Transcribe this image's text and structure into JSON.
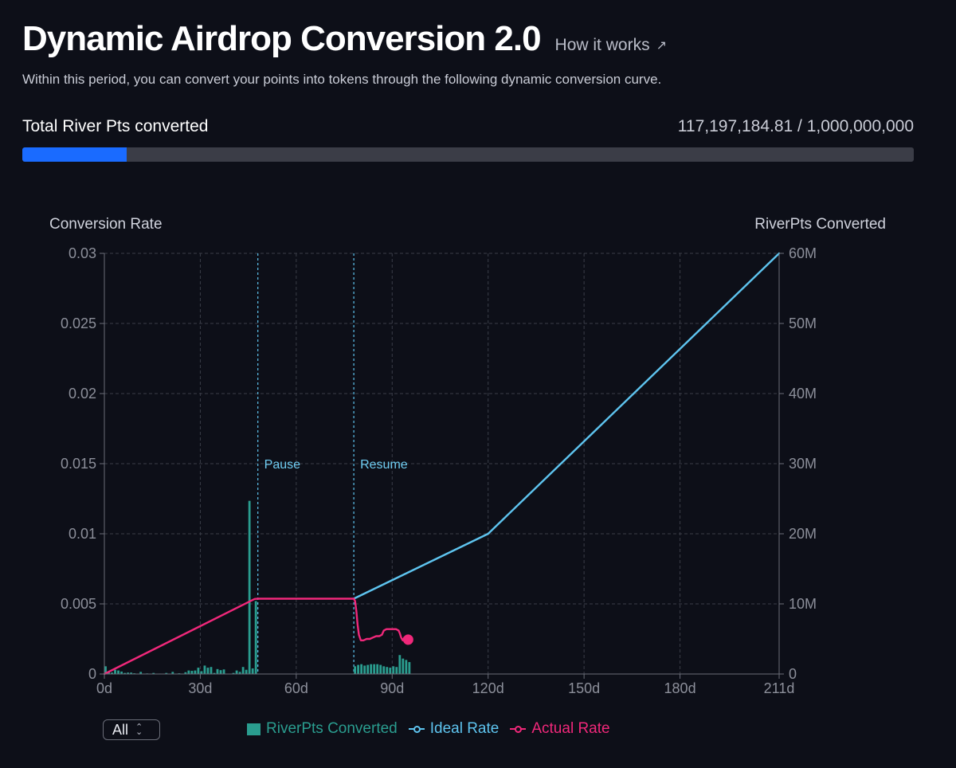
{
  "header": {
    "title": "Dynamic Airdrop Conversion 2.0",
    "how_link": "How it works",
    "subtitle": "Within this period, you can convert your points into tokens through the following dynamic conversion curve."
  },
  "progress": {
    "label": "Total River Pts converted",
    "value_text": "117,197,184.81 / 1,000,000,000",
    "converted": 117197184.81,
    "total": 1000000000,
    "color": "#1a6bff"
  },
  "controls": {
    "range_selected": "All"
  },
  "chart_data": {
    "type": "combo",
    "left_axis_title": "Conversion Rate",
    "right_axis_title": "RiverPts Converted",
    "x_ticks": [
      "0d",
      "30d",
      "60d",
      "90d",
      "120d",
      "150d",
      "180d",
      "211d"
    ],
    "x_tick_values": [
      0,
      30,
      60,
      90,
      120,
      150,
      180,
      211
    ],
    "x_range": [
      0,
      211
    ],
    "left_ticks": [
      "0",
      "0.005",
      "0.01",
      "0.015",
      "0.02",
      "0.025",
      "0.03"
    ],
    "left_tick_values": [
      0,
      0.005,
      0.01,
      0.015,
      0.02,
      0.025,
      0.03
    ],
    "left_range": [
      0,
      0.03
    ],
    "right_ticks": [
      "0",
      "10M",
      "20M",
      "30M",
      "40M",
      "50M",
      "60M"
    ],
    "right_tick_values": [
      0,
      10000000,
      20000000,
      30000000,
      40000000,
      50000000,
      60000000
    ],
    "right_range": [
      0,
      60000000
    ],
    "grid": true,
    "markers": [
      {
        "label": "Pause",
        "day": 48
      },
      {
        "label": "Resume",
        "day": 78
      }
    ],
    "series": [
      {
        "name": "RiverPts Converted",
        "type": "bar",
        "axis": "right",
        "color": "#2a9d8f",
        "points": [
          [
            0,
            1100000
          ],
          [
            1,
            400000
          ],
          [
            2,
            200000
          ],
          [
            3,
            600000
          ],
          [
            4,
            500000
          ],
          [
            5,
            350000
          ],
          [
            6,
            150000
          ],
          [
            7,
            200000
          ],
          [
            8,
            200000
          ],
          [
            9,
            100000
          ],
          [
            11,
            300000
          ],
          [
            13,
            80000
          ],
          [
            15,
            150000
          ],
          [
            17,
            60000
          ],
          [
            19,
            150000
          ],
          [
            21,
            300000
          ],
          [
            23,
            100000
          ],
          [
            25,
            250000
          ],
          [
            26,
            500000
          ],
          [
            27,
            450000
          ],
          [
            28,
            500000
          ],
          [
            29,
            900000
          ],
          [
            30,
            400000
          ],
          [
            31,
            1200000
          ],
          [
            32,
            900000
          ],
          [
            33,
            1000000
          ],
          [
            34,
            150000
          ],
          [
            35,
            700000
          ],
          [
            36,
            550000
          ],
          [
            37,
            650000
          ],
          [
            39,
            50000
          ],
          [
            40,
            150000
          ],
          [
            41,
            500000
          ],
          [
            42,
            300000
          ],
          [
            43,
            1000000
          ],
          [
            44,
            600000
          ],
          [
            45,
            24700000
          ],
          [
            46,
            800000
          ],
          [
            47,
            10400000
          ],
          [
            78,
            1100000
          ],
          [
            79,
            1300000
          ],
          [
            80,
            1400000
          ],
          [
            81,
            1200000
          ],
          [
            82,
            1300000
          ],
          [
            83,
            1400000
          ],
          [
            84,
            1400000
          ],
          [
            85,
            1400000
          ],
          [
            86,
            1300000
          ],
          [
            87,
            1100000
          ],
          [
            88,
            1000000
          ],
          [
            89,
            900000
          ],
          [
            90,
            1100000
          ],
          [
            91,
            1000000
          ],
          [
            92,
            2700000
          ],
          [
            93,
            2200000
          ],
          [
            94,
            2000000
          ],
          [
            95,
            1700000
          ]
        ]
      },
      {
        "name": "Ideal Rate",
        "type": "line",
        "axis": "left",
        "color": "#5ec4ef",
        "points": [
          [
            78,
            0.00537
          ],
          [
            120,
            0.01
          ],
          [
            211,
            0.03
          ]
        ]
      },
      {
        "name": "Actual Rate",
        "type": "line",
        "axis": "left",
        "color": "#f0287a",
        "points": [
          [
            0,
            0
          ],
          [
            47,
            0.00535
          ],
          [
            48,
            0.00537
          ],
          [
            78,
            0.00537
          ],
          [
            78.4,
            0.0052
          ],
          [
            78.8,
            0.0045
          ],
          [
            79.2,
            0.0035
          ],
          [
            79.6,
            0.0028
          ],
          [
            80.2,
            0.0024
          ],
          [
            81,
            0.0024
          ],
          [
            82,
            0.0025
          ],
          [
            83,
            0.0025
          ],
          [
            84,
            0.0026
          ],
          [
            85,
            0.0027
          ],
          [
            86,
            0.0027
          ],
          [
            86.8,
            0.0028
          ],
          [
            87.4,
            0.0031
          ],
          [
            88.2,
            0.0032
          ],
          [
            89.2,
            0.0032
          ],
          [
            90.2,
            0.0032
          ],
          [
            91.2,
            0.0032
          ],
          [
            92,
            0.0031
          ],
          [
            92.4,
            0.0029
          ],
          [
            92.8,
            0.0026
          ],
          [
            93.3,
            0.0024
          ],
          [
            93.8,
            0.0026
          ],
          [
            94.3,
            0.0025
          ]
        ],
        "end_point": [
          95,
          0.00245
        ]
      }
    ]
  }
}
